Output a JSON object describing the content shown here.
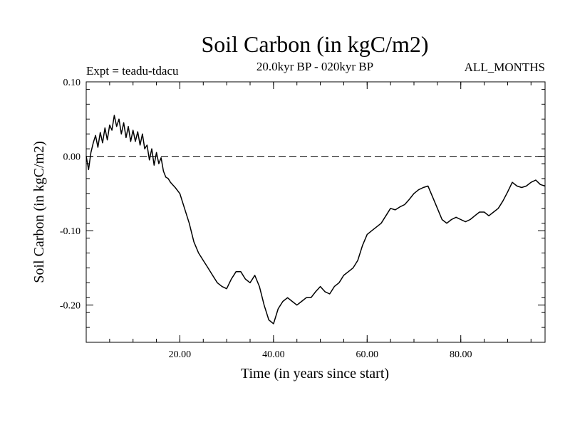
{
  "chart_data": {
    "type": "line",
    "title": "Soil Carbon (in kgC/m2)",
    "subtitle_left": "Expt = teadu-tdacu",
    "subtitle_center": "20.0kyr BP - 020kyr BP",
    "subtitle_right": "ALL_MONTHS",
    "xlabel": "Time (in years since start)",
    "ylabel": "Soil Carbon (in kgC/m2)",
    "xlim": [
      0,
      98
    ],
    "ylim": [
      -0.25,
      0.1
    ],
    "x_ticks": [
      20,
      40,
      60,
      80
    ],
    "x_tick_labels": [
      "20.00",
      "40.00",
      "60.00",
      "80.00"
    ],
    "y_ticks": [
      0.1,
      0.0,
      -0.1,
      -0.2
    ],
    "y_tick_labels": [
      "0.10",
      "0.00",
      "-0.10",
      "-0.20"
    ],
    "reference_line": {
      "y": 0.0,
      "style": "dashed"
    },
    "series": [
      {
        "name": "Soil Carbon",
        "color": "#000000",
        "x": [
          0,
          0.5,
          1,
          1.5,
          2,
          2.5,
          3,
          3.5,
          4,
          4.5,
          5,
          5.5,
          6,
          6.5,
          7,
          7.5,
          8,
          8.5,
          9,
          9.5,
          10,
          10.5,
          11,
          11.5,
          12,
          12.5,
          13,
          13.5,
          14,
          14.5,
          15,
          15.5,
          16,
          16.5,
          17,
          17.5,
          18,
          19,
          20,
          21,
          22,
          23,
          24,
          25,
          26,
          27,
          28,
          29,
          30,
          31,
          32,
          33,
          34,
          35,
          36,
          37,
          38,
          39,
          40,
          41,
          42,
          43,
          44,
          45,
          46,
          47,
          48,
          49,
          50,
          51,
          52,
          53,
          54,
          55,
          56,
          57,
          58,
          59,
          60,
          61,
          62,
          63,
          64,
          65,
          66,
          67,
          68,
          69,
          70,
          71,
          72,
          73,
          74,
          75,
          76,
          77,
          78,
          79,
          80,
          81,
          82,
          83,
          84,
          85,
          86,
          87,
          88,
          89,
          90,
          91,
          92,
          93,
          94,
          95,
          96,
          97,
          98
        ],
        "values": [
          0.0,
          -0.018,
          0.005,
          0.018,
          0.028,
          0.012,
          0.032,
          0.018,
          0.038,
          0.022,
          0.042,
          0.035,
          0.055,
          0.04,
          0.05,
          0.03,
          0.045,
          0.025,
          0.04,
          0.02,
          0.035,
          0.02,
          0.033,
          0.015,
          0.03,
          0.01,
          0.015,
          -0.005,
          0.01,
          -0.012,
          0.005,
          -0.01,
          -0.002,
          -0.02,
          -0.028,
          -0.03,
          -0.035,
          -0.042,
          -0.05,
          -0.07,
          -0.09,
          -0.115,
          -0.13,
          -0.14,
          -0.15,
          -0.16,
          -0.17,
          -0.175,
          -0.178,
          -0.165,
          -0.155,
          -0.155,
          -0.165,
          -0.17,
          -0.16,
          -0.175,
          -0.2,
          -0.22,
          -0.225,
          -0.205,
          -0.195,
          -0.19,
          -0.195,
          -0.2,
          -0.195,
          -0.19,
          -0.19,
          -0.182,
          -0.175,
          -0.182,
          -0.185,
          -0.175,
          -0.17,
          -0.16,
          -0.155,
          -0.15,
          -0.14,
          -0.12,
          -0.105,
          -0.1,
          -0.095,
          -0.09,
          -0.08,
          -0.07,
          -0.072,
          -0.068,
          -0.065,
          -0.058,
          -0.05,
          -0.045,
          -0.042,
          -0.04,
          -0.055,
          -0.07,
          -0.085,
          -0.09,
          -0.085,
          -0.082,
          -0.085,
          -0.088,
          -0.085,
          -0.08,
          -0.075,
          -0.075,
          -0.08,
          -0.075,
          -0.07,
          -0.06,
          -0.048,
          -0.035,
          -0.04,
          -0.042,
          -0.04,
          -0.035,
          -0.032,
          -0.038,
          -0.04
        ]
      }
    ]
  }
}
